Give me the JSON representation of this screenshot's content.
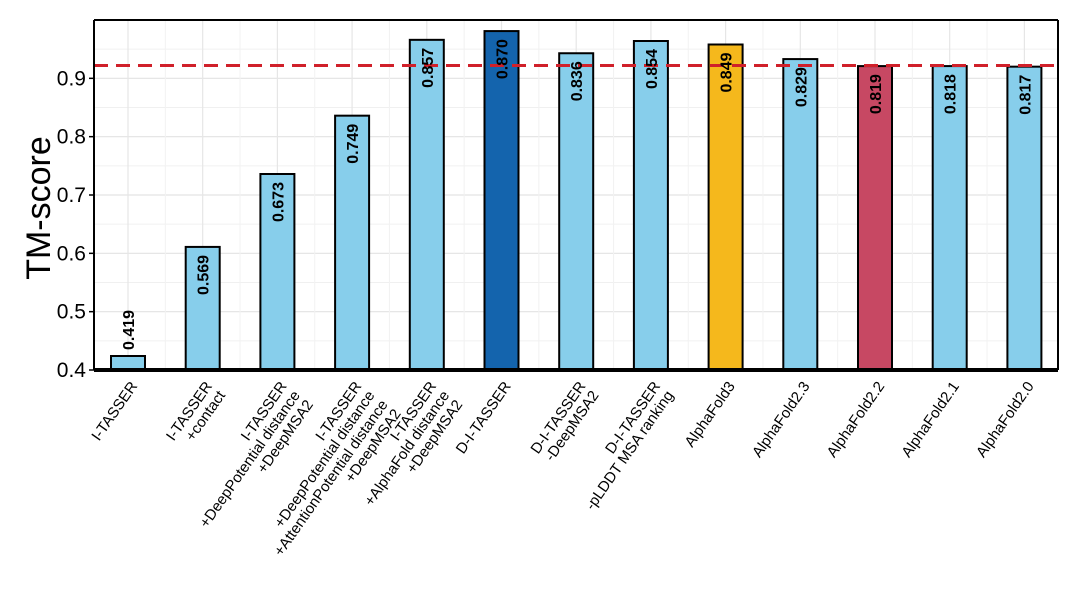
{
  "chart_data": {
    "type": "bar",
    "title": "",
    "xlabel": "",
    "ylabel": "TM-score",
    "ylim": [
      0.4,
      1.0
    ],
    "yticks": [
      "0.4",
      "0.5",
      "0.6",
      "0.7",
      "0.8",
      "0.9"
    ],
    "grid": true,
    "reference_line": {
      "y": 0.922,
      "style": "dashed",
      "color": "#d0202a"
    },
    "categories": [
      [
        "I-TASSER"
      ],
      [
        "I-TASSER",
        "+contact"
      ],
      [
        "I-TASSER",
        "+DeepPotential distance",
        "+DeepMSA2"
      ],
      [
        "I-TASSER",
        "+DeepPotential distance",
        "+AttentionPotential distance",
        "+DeepMSA2"
      ],
      [
        "I-TASSER",
        "+AlphaFold distance",
        "+DeepMSA2"
      ],
      [
        "D-I-TASSER"
      ],
      [
        "D-I-TASSER",
        "-DeepMSA2"
      ],
      [
        "D-I-TASSER",
        "-pLDDT MSA ranking"
      ],
      [
        "AlphaFold3"
      ],
      [
        "AlphaFold2.3"
      ],
      [
        "AlphaFold2.2"
      ],
      [
        "AlphaFold2.1"
      ],
      [
        "AlphaFold2.0"
      ]
    ],
    "values": [
      0.419,
      0.569,
      0.673,
      0.749,
      0.857,
      0.87,
      0.836,
      0.854,
      0.849,
      0.829,
      0.819,
      0.818,
      0.817
    ],
    "bar_heights": [
      0.424,
      0.611,
      0.736,
      0.836,
      0.966,
      0.981,
      0.943,
      0.964,
      0.958,
      0.933,
      0.921,
      0.921,
      0.92
    ],
    "value_labels": [
      "0.419",
      "0.569",
      "0.673",
      "0.749",
      "0.857",
      "0.870",
      "0.836",
      "0.854",
      "0.849",
      "0.829",
      "0.819",
      "0.818",
      "0.817"
    ],
    "colors": [
      "#87ceeb",
      "#87ceeb",
      "#87ceeb",
      "#87ceeb",
      "#87ceeb",
      "#1464ad",
      "#87ceeb",
      "#87ceeb",
      "#f5b81c",
      "#87ceeb",
      "#c74863",
      "#87ceeb",
      "#87ceeb"
    ]
  }
}
